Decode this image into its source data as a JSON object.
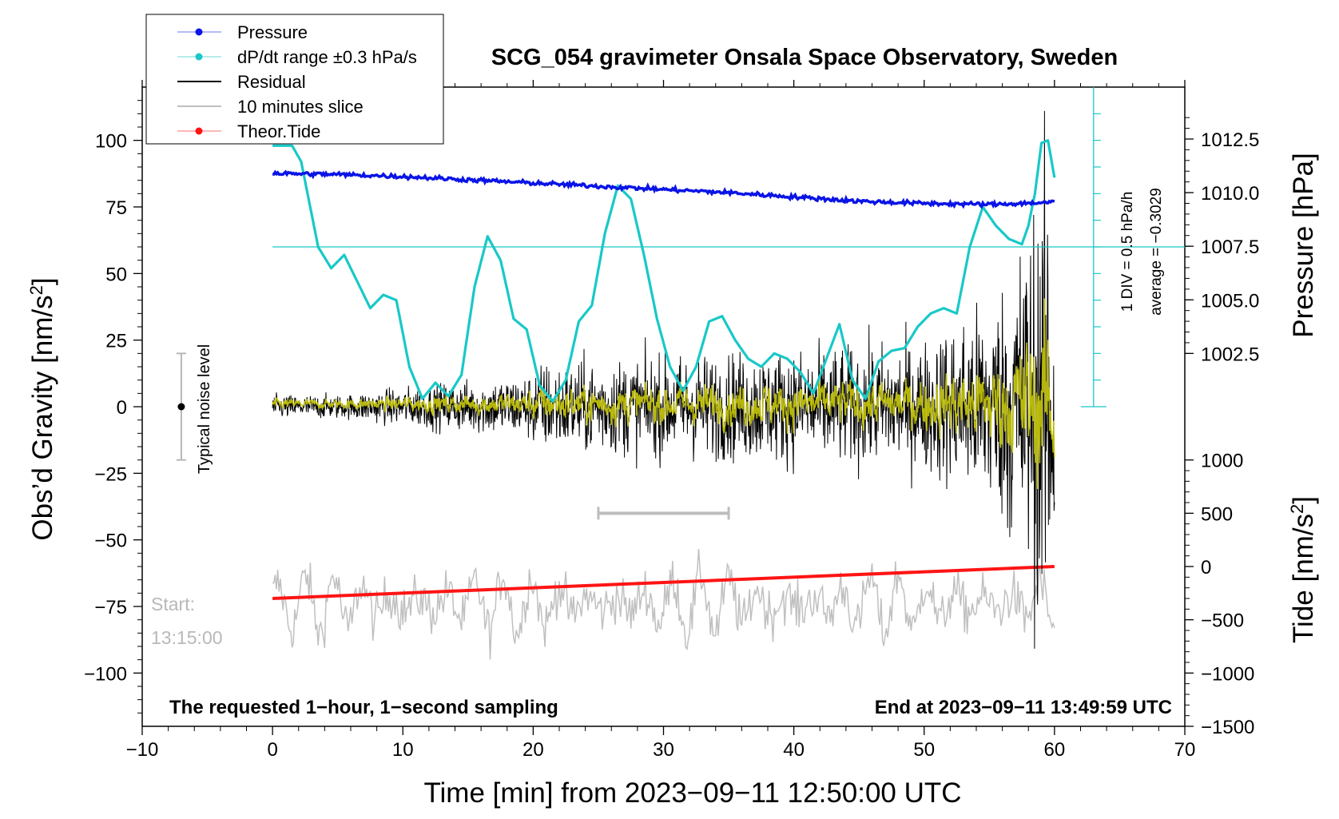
{
  "chart_data": {
    "type": "line",
    "title": "SCG_054 gravimeter Onsala Space Observatory, Sweden",
    "xlabel": "Time [min] from 2023−09−11 12:50:00 UTC",
    "ylabel_left": "Obs’d Gravity [nm/s",
    "ylabel_left_sup": "2",
    "ylabel_left_end": "]",
    "ylabel_pressure": "Pressure [hPa]",
    "ylabel_tide": "Tide [nm/s",
    "ylabel_tide_sup": "2",
    "ylabel_tide_end": "]",
    "xlim": [
      -10,
      70
    ],
    "ylim_left": [
      -120,
      120
    ],
    "x_ticks": [
      "−10",
      "0",
      "10",
      "20",
      "30",
      "40",
      "50",
      "60",
      "70"
    ],
    "x_tick_values": [
      -10,
      0,
      10,
      20,
      30,
      40,
      50,
      60,
      70
    ],
    "y_left_ticks": [
      "100",
      "75",
      "50",
      "25",
      "0",
      "−25",
      "−50",
      "−75",
      "−100"
    ],
    "y_left_tick_values": [
      100,
      75,
      50,
      25,
      0,
      -25,
      -50,
      -75,
      -100
    ],
    "pressure_ticks": [
      "1012.5",
      "1010.0",
      "1007.5",
      "1005.0",
      "1002.5"
    ],
    "pressure_tick_values": [
      1012.5,
      1010.0,
      1007.5,
      1005.0,
      1002.5
    ],
    "pressure_axis_map": {
      "hpa": [
        1012.5,
        1002.5
      ],
      "gravity": [
        100.5,
        20
      ]
    },
    "tide_ticks": [
      "1000",
      "500",
      "0",
      "−500",
      "−1000",
      "−1500"
    ],
    "tide_tick_values": [
      1000,
      500,
      0,
      -500,
      -1000,
      -1500
    ],
    "tide_axis_map": {
      "nms2": [
        1000,
        -1500
      ],
      "gravity": [
        -20,
        -120
      ]
    },
    "legend": {
      "placement": "top-left",
      "entries": [
        {
          "label": "Pressure",
          "color": "#0a14e6",
          "style": "line-dot"
        },
        {
          "label": "dP/dt range ±0.3 hPa/s",
          "color": "#19c8c8",
          "style": "line-dot"
        },
        {
          "label": "Residual",
          "color": "#000000",
          "style": "line"
        },
        {
          "label": "10 minutes slice",
          "color": "#c0c0c0",
          "style": "line"
        },
        {
          "label": "Theor.Tide",
          "color": "#ff1414",
          "style": "line-dot"
        }
      ]
    },
    "series": [
      {
        "name": "Pressure",
        "color": "#0a14e6",
        "unit": "hPa",
        "x": [
          0,
          5,
          10,
          15,
          20,
          25,
          30,
          35,
          40,
          45,
          50,
          55,
          60
        ],
        "values": [
          1010.9,
          1010.85,
          1010.75,
          1010.6,
          1010.45,
          1010.3,
          1010.15,
          1010.0,
          1009.8,
          1009.6,
          1009.5,
          1009.45,
          1009.55
        ]
      },
      {
        "name": "dP/dt",
        "color": "#19c8c8",
        "unit": "gravity-axis",
        "x": [
          0,
          1.5,
          2.2,
          3.5,
          4.5,
          5.5,
          6.5,
          7.5,
          8.5,
          9.5,
          10.5,
          11.5,
          12.5,
          13.5,
          14.5,
          15.5,
          16.5,
          17.5,
          18.5,
          19.5,
          20.5,
          21.5,
          22.5,
          23.5,
          24.5,
          25.5,
          26.5,
          27.5,
          28.5,
          29.5,
          30.5,
          31.5,
          32.5,
          33.5,
          34.5,
          35.5,
          36.5,
          37.5,
          38.5,
          39.5,
          40.5,
          41.5,
          42.5,
          43.5,
          44.5,
          45.5,
          46.5,
          47.5,
          48.5,
          49.5,
          50.5,
          51.5,
          52.5,
          53.5,
          54.5,
          55.5,
          56.5,
          57.5,
          58.0,
          58.5,
          59.0,
          59.5,
          60.0
        ],
        "values": [
          98,
          98,
          92,
          60,
          52,
          57,
          47,
          37,
          42,
          40,
          15,
          3,
          9,
          4,
          12,
          45,
          64,
          55,
          33,
          29,
          8,
          2,
          10,
          32,
          38,
          65,
          83,
          78,
          57,
          33,
          15,
          6,
          15,
          32,
          34,
          25,
          18,
          15,
          20,
          18,
          13,
          5,
          18,
          31,
          10,
          3,
          17,
          21,
          22,
          30,
          35,
          37,
          35,
          60,
          75,
          68,
          63,
          61,
          68,
          80,
          99,
          100,
          86
        ]
      },
      {
        "name": "Theor.Tide",
        "color": "#ff1414",
        "unit": "nm/s2",
        "x": [
          0,
          60
        ],
        "values": [
          -300,
          0
        ]
      }
    ],
    "annotations": {
      "noise_label": "Typical noise level",
      "noise_range": [
        -20,
        20
      ],
      "div_label": "1 DIV = 0.5 hPa/h",
      "average_label": "average = −0.3029",
      "start_label": "Start:",
      "start_time": "13:15:00",
      "slice_range_minutes": [
        25,
        35
      ],
      "footer_left": "The requested 1−hour, 1−second sampling",
      "footer_right": "End at 2023−09−11 13:49:59 UTC"
    }
  }
}
